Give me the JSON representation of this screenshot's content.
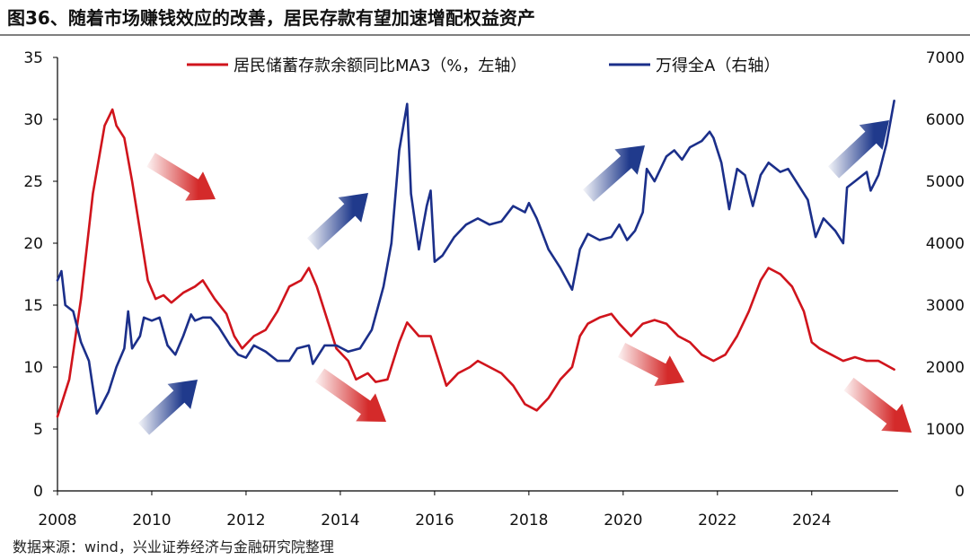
{
  "figure": {
    "title": "图36、随着市场赚钱效应的改善，居民存款有望加速增配权益资产",
    "source": "数据来源：wind，兴业证券经济与金融研究院整理"
  },
  "colors": {
    "red_series": "#d0141c",
    "blue_series": "#1b2f8a",
    "arrow_red": "#d42a2a",
    "arrow_blue": "#203a8c"
  },
  "chart_data": {
    "type": "line",
    "x_ticks": [
      "2008",
      "2010",
      "2012",
      "2014",
      "2016",
      "2018",
      "2020",
      "2022",
      "2024"
    ],
    "xlim": [
      "2008-01",
      "2025-11"
    ],
    "left_axis": {
      "ylim": [
        0,
        35
      ],
      "ticks": [
        "0",
        "5",
        "10",
        "15",
        "20",
        "25",
        "30",
        "35"
      ]
    },
    "right_axis": {
      "ylim": [
        0,
        7000
      ],
      "ticks": [
        "0",
        "1000",
        "2000",
        "3000",
        "4000",
        "5000",
        "6000",
        "7000"
      ]
    },
    "legend_position": "top",
    "grid": false,
    "series": [
      {
        "name": "居民储蓄存款余额同比MA3（%，左轴）",
        "axis": "left",
        "color": "#d0141c",
        "points": [
          [
            "2008-01",
            6.0
          ],
          [
            "2008-04",
            9.0
          ],
          [
            "2008-07",
            15.5
          ],
          [
            "2008-10",
            24.0
          ],
          [
            "2009-01",
            29.5
          ],
          [
            "2009-03",
            30.8
          ],
          [
            "2009-04",
            29.5
          ],
          [
            "2009-06",
            28.5
          ],
          [
            "2009-08",
            25.0
          ],
          [
            "2009-10",
            21.0
          ],
          [
            "2009-12",
            17.0
          ],
          [
            "2010-02",
            15.5
          ],
          [
            "2010-04",
            15.8
          ],
          [
            "2010-06",
            15.2
          ],
          [
            "2010-09",
            16.0
          ],
          [
            "2010-12",
            16.5
          ],
          [
            "2011-02",
            17.0
          ],
          [
            "2011-05",
            15.5
          ],
          [
            "2011-08",
            14.3
          ],
          [
            "2011-10",
            12.5
          ],
          [
            "2011-12",
            11.5
          ],
          [
            "2012-03",
            12.5
          ],
          [
            "2012-06",
            13.0
          ],
          [
            "2012-09",
            14.5
          ],
          [
            "2012-12",
            16.5
          ],
          [
            "2013-03",
            17.0
          ],
          [
            "2013-05",
            18.0
          ],
          [
            "2013-07",
            16.5
          ],
          [
            "2013-10",
            13.5
          ],
          [
            "2013-12",
            11.5
          ],
          [
            "2014-03",
            10.5
          ],
          [
            "2014-05",
            9.0
          ],
          [
            "2014-08",
            9.5
          ],
          [
            "2014-10",
            8.8
          ],
          [
            "2015-01",
            9.0
          ],
          [
            "2015-04",
            12.0
          ],
          [
            "2015-06",
            13.6
          ],
          [
            "2015-09",
            12.5
          ],
          [
            "2015-12",
            12.5
          ],
          [
            "2016-02",
            10.5
          ],
          [
            "2016-04",
            8.5
          ],
          [
            "2016-07",
            9.5
          ],
          [
            "2016-10",
            10.0
          ],
          [
            "2016-12",
            10.5
          ],
          [
            "2017-03",
            10.0
          ],
          [
            "2017-06",
            9.5
          ],
          [
            "2017-09",
            8.5
          ],
          [
            "2017-12",
            7.0
          ],
          [
            "2018-03",
            6.5
          ],
          [
            "2018-06",
            7.5
          ],
          [
            "2018-09",
            9.0
          ],
          [
            "2018-12",
            10.0
          ],
          [
            "2019-02",
            12.5
          ],
          [
            "2019-04",
            13.5
          ],
          [
            "2019-07",
            14.0
          ],
          [
            "2019-10",
            14.3
          ],
          [
            "2019-12",
            13.5
          ],
          [
            "2020-03",
            12.5
          ],
          [
            "2020-06",
            13.5
          ],
          [
            "2020-09",
            13.8
          ],
          [
            "2020-12",
            13.5
          ],
          [
            "2021-03",
            12.5
          ],
          [
            "2021-06",
            12.0
          ],
          [
            "2021-09",
            11.0
          ],
          [
            "2021-12",
            10.5
          ],
          [
            "2022-03",
            11.0
          ],
          [
            "2022-06",
            12.5
          ],
          [
            "2022-09",
            14.5
          ],
          [
            "2022-12",
            17.0
          ],
          [
            "2023-02",
            18.0
          ],
          [
            "2023-05",
            17.5
          ],
          [
            "2023-08",
            16.5
          ],
          [
            "2023-11",
            14.5
          ],
          [
            "2024-01",
            12.0
          ],
          [
            "2024-03",
            11.5
          ],
          [
            "2024-06",
            11.0
          ],
          [
            "2024-09",
            10.5
          ],
          [
            "2024-12",
            10.8
          ],
          [
            "2025-03",
            10.5
          ],
          [
            "2025-06",
            10.5
          ],
          [
            "2025-10",
            9.8
          ]
        ]
      },
      {
        "name": "万得全A（右轴）",
        "axis": "right",
        "color": "#1b2f8a",
        "points": [
          [
            "2008-01",
            3400
          ],
          [
            "2008-02",
            3550
          ],
          [
            "2008-03",
            3000
          ],
          [
            "2008-05",
            2900
          ],
          [
            "2008-07",
            2400
          ],
          [
            "2008-09",
            2100
          ],
          [
            "2008-11",
            1250
          ],
          [
            "2008-12",
            1350
          ],
          [
            "2009-02",
            1600
          ],
          [
            "2009-04",
            2000
          ],
          [
            "2009-06",
            2300
          ],
          [
            "2009-07",
            2900
          ],
          [
            "2009-08",
            2300
          ],
          [
            "2009-10",
            2500
          ],
          [
            "2009-11",
            2800
          ],
          [
            "2010-01",
            2750
          ],
          [
            "2010-03",
            2800
          ],
          [
            "2010-05",
            2350
          ],
          [
            "2010-07",
            2200
          ],
          [
            "2010-09",
            2500
          ],
          [
            "2010-11",
            2850
          ],
          [
            "2010-12",
            2750
          ],
          [
            "2011-02",
            2800
          ],
          [
            "2011-04",
            2800
          ],
          [
            "2011-06",
            2650
          ],
          [
            "2011-09",
            2350
          ],
          [
            "2011-11",
            2200
          ],
          [
            "2012-01",
            2150
          ],
          [
            "2012-03",
            2350
          ],
          [
            "2012-06",
            2250
          ],
          [
            "2012-09",
            2100
          ],
          [
            "2012-12",
            2100
          ],
          [
            "2013-02",
            2300
          ],
          [
            "2013-05",
            2350
          ],
          [
            "2013-06",
            2050
          ],
          [
            "2013-09",
            2350
          ],
          [
            "2013-12",
            2350
          ],
          [
            "2014-03",
            2250
          ],
          [
            "2014-06",
            2300
          ],
          [
            "2014-09",
            2600
          ],
          [
            "2014-12",
            3300
          ],
          [
            "2015-02",
            4000
          ],
          [
            "2015-04",
            5500
          ],
          [
            "2015-06",
            6250
          ],
          [
            "2015-07",
            4800
          ],
          [
            "2015-09",
            3900
          ],
          [
            "2015-11",
            4600
          ],
          [
            "2015-12",
            4850
          ],
          [
            "2016-01",
            3700
          ],
          [
            "2016-03",
            3800
          ],
          [
            "2016-06",
            4100
          ],
          [
            "2016-09",
            4300
          ],
          [
            "2016-12",
            4400
          ],
          [
            "2017-03",
            4300
          ],
          [
            "2017-06",
            4350
          ],
          [
            "2017-09",
            4600
          ],
          [
            "2017-12",
            4500
          ],
          [
            "2018-01",
            4650
          ],
          [
            "2018-03",
            4400
          ],
          [
            "2018-06",
            3900
          ],
          [
            "2018-09",
            3600
          ],
          [
            "2018-12",
            3250
          ],
          [
            "2019-02",
            3900
          ],
          [
            "2019-04",
            4150
          ],
          [
            "2019-07",
            4050
          ],
          [
            "2019-10",
            4100
          ],
          [
            "2019-12",
            4300
          ],
          [
            "2020-02",
            4050
          ],
          [
            "2020-04",
            4200
          ],
          [
            "2020-06",
            4500
          ],
          [
            "2020-07",
            5200
          ],
          [
            "2020-09",
            5000
          ],
          [
            "2020-12",
            5400
          ],
          [
            "2021-02",
            5500
          ],
          [
            "2021-04",
            5350
          ],
          [
            "2021-06",
            5550
          ],
          [
            "2021-09",
            5650
          ],
          [
            "2021-11",
            5800
          ],
          [
            "2021-12",
            5700
          ],
          [
            "2022-02",
            5300
          ],
          [
            "2022-04",
            4550
          ],
          [
            "2022-06",
            5200
          ],
          [
            "2022-08",
            5100
          ],
          [
            "2022-10",
            4600
          ],
          [
            "2022-12",
            5100
          ],
          [
            "2023-02",
            5300
          ],
          [
            "2023-05",
            5150
          ],
          [
            "2023-07",
            5200
          ],
          [
            "2023-10",
            4900
          ],
          [
            "2023-12",
            4700
          ],
          [
            "2024-02",
            4100
          ],
          [
            "2024-04",
            4400
          ],
          [
            "2024-07",
            4200
          ],
          [
            "2024-09",
            4000
          ],
          [
            "2024-10",
            4900
          ],
          [
            "2024-12",
            5000
          ],
          [
            "2025-03",
            5150
          ],
          [
            "2025-04",
            4850
          ],
          [
            "2025-06",
            5100
          ],
          [
            "2025-08",
            5600
          ],
          [
            "2025-10",
            6300
          ]
        ]
      }
    ]
  }
}
